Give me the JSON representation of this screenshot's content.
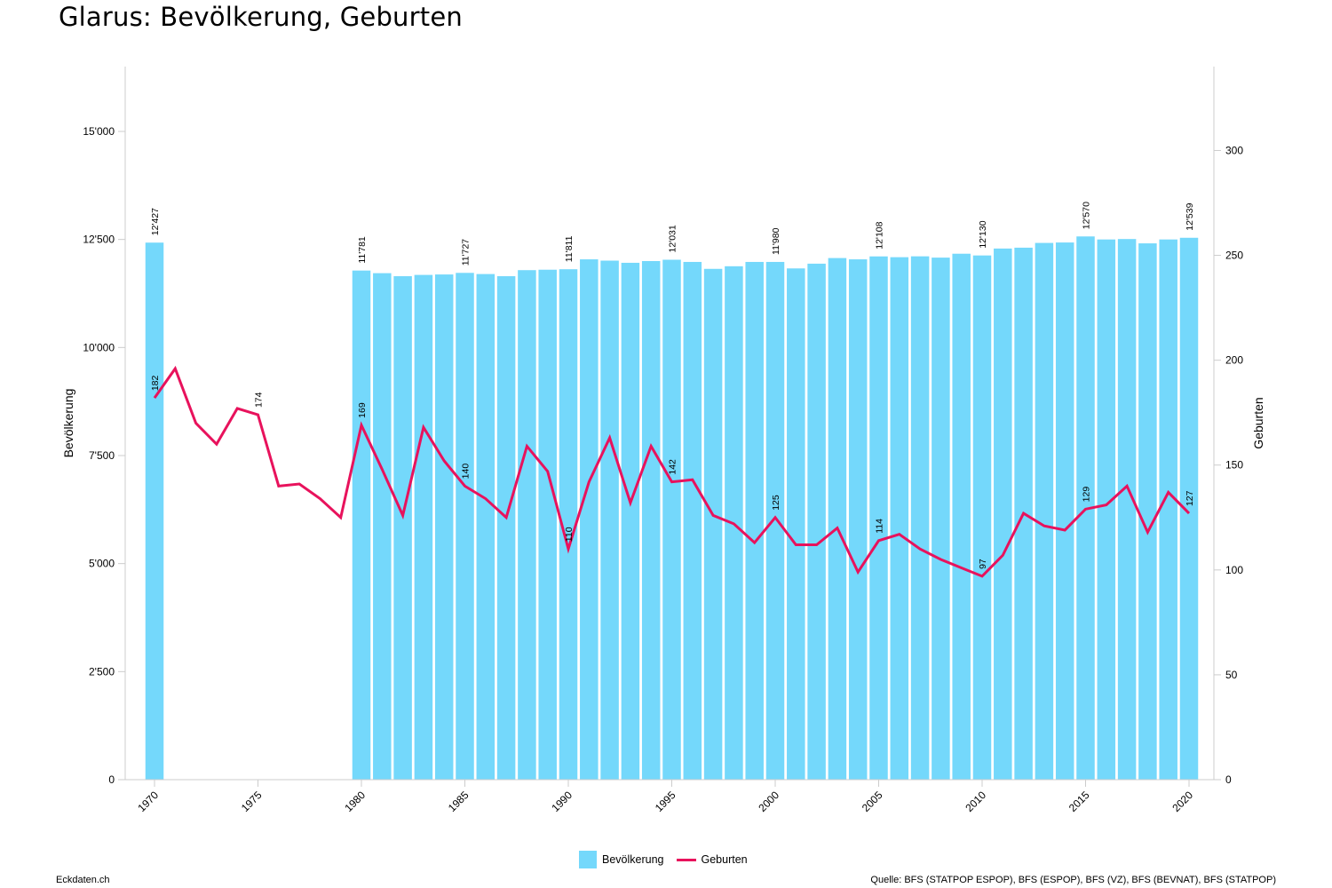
{
  "title": "Glarus: Bevölkerung, Geburten",
  "footer": {
    "left": "Eckdaten.ch",
    "right": "Quelle: BFS (STATPOP ESPOP), BFS (ESPOP), BFS (VZ), BFS (BEVNAT), BFS (STATPOP)"
  },
  "colors": {
    "bars": "#74d8fb",
    "line": "#e8125c",
    "axis": "#cccccc"
  },
  "chart_data": {
    "type": "bar+line",
    "title": "Glarus: Bevölkerung, Geburten",
    "grid": false,
    "legend_position": "bottom",
    "x": [
      1970,
      1971,
      1972,
      1973,
      1974,
      1975,
      1976,
      1977,
      1978,
      1979,
      1980,
      1981,
      1982,
      1983,
      1984,
      1985,
      1986,
      1987,
      1988,
      1989,
      1990,
      1991,
      1992,
      1993,
      1994,
      1995,
      1996,
      1997,
      1998,
      1999,
      2000,
      2001,
      2002,
      2003,
      2004,
      2005,
      2006,
      2007,
      2008,
      2009,
      2010,
      2011,
      2012,
      2013,
      2014,
      2015,
      2016,
      2017,
      2018,
      2019,
      2020
    ],
    "x_ticks": [
      "1970",
      "1975",
      "1980",
      "1985",
      "1990",
      "1995",
      "2000",
      "2005",
      "2010",
      "2015",
      "2020"
    ],
    "y_left": {
      "label": "Bevölkerung",
      "range": [
        0,
        16500
      ],
      "ticks": [
        "0",
        "2'500",
        "5'000",
        "7'500",
        "10'000",
        "12'500",
        "15'000"
      ]
    },
    "y_right": {
      "label": "Geburten",
      "range": [
        0,
        340
      ],
      "ticks": [
        "0",
        "50",
        "100",
        "150",
        "200",
        "250",
        "300"
      ]
    },
    "series": [
      {
        "name": "Bevölkerung",
        "axis": "left",
        "type": "bar",
        "values": [
          12427,
          null,
          null,
          null,
          null,
          null,
          null,
          null,
          null,
          null,
          11781,
          11720,
          11650,
          11680,
          11690,
          11727,
          11700,
          11650,
          11790,
          11800,
          11811,
          12040,
          12010,
          11960,
          12000,
          12031,
          11980,
          11820,
          11880,
          11980,
          11980,
          11830,
          11940,
          12070,
          12040,
          12108,
          12090,
          12110,
          12080,
          12170,
          12130,
          12290,
          12310,
          12420,
          12430,
          12570,
          12500,
          12510,
          12410,
          12500,
          12539
        ],
        "labels": {
          "1970": "12'427",
          "1980": "11'781",
          "1985": "11'727",
          "1990": "11'811",
          "1995": "12'031",
          "2000": "11'980",
          "2005": "12'108",
          "2010": "12'130",
          "2015": "12'570",
          "2020": "12'539"
        }
      },
      {
        "name": "Geburten",
        "axis": "right",
        "type": "line",
        "values": [
          182,
          196,
          170,
          160,
          177,
          174,
          140,
          141,
          134,
          125,
          169,
          148,
          126,
          168,
          152,
          140,
          134,
          125,
          159,
          147,
          110,
          142,
          163,
          132,
          159,
          142,
          143,
          126,
          122,
          113,
          125,
          112,
          112,
          120,
          99,
          114,
          117,
          110,
          105,
          101,
          97,
          107,
          127,
          121,
          119,
          129,
          131,
          140,
          118,
          137,
          127
        ],
        "labels": {
          "1970": "182",
          "1975": "174",
          "1980": "169",
          "1985": "140",
          "1990": "110",
          "1995": "142",
          "2000": "125",
          "2005": "114",
          "2010": "97",
          "2015": "129",
          "2020": "127"
        }
      }
    ]
  }
}
